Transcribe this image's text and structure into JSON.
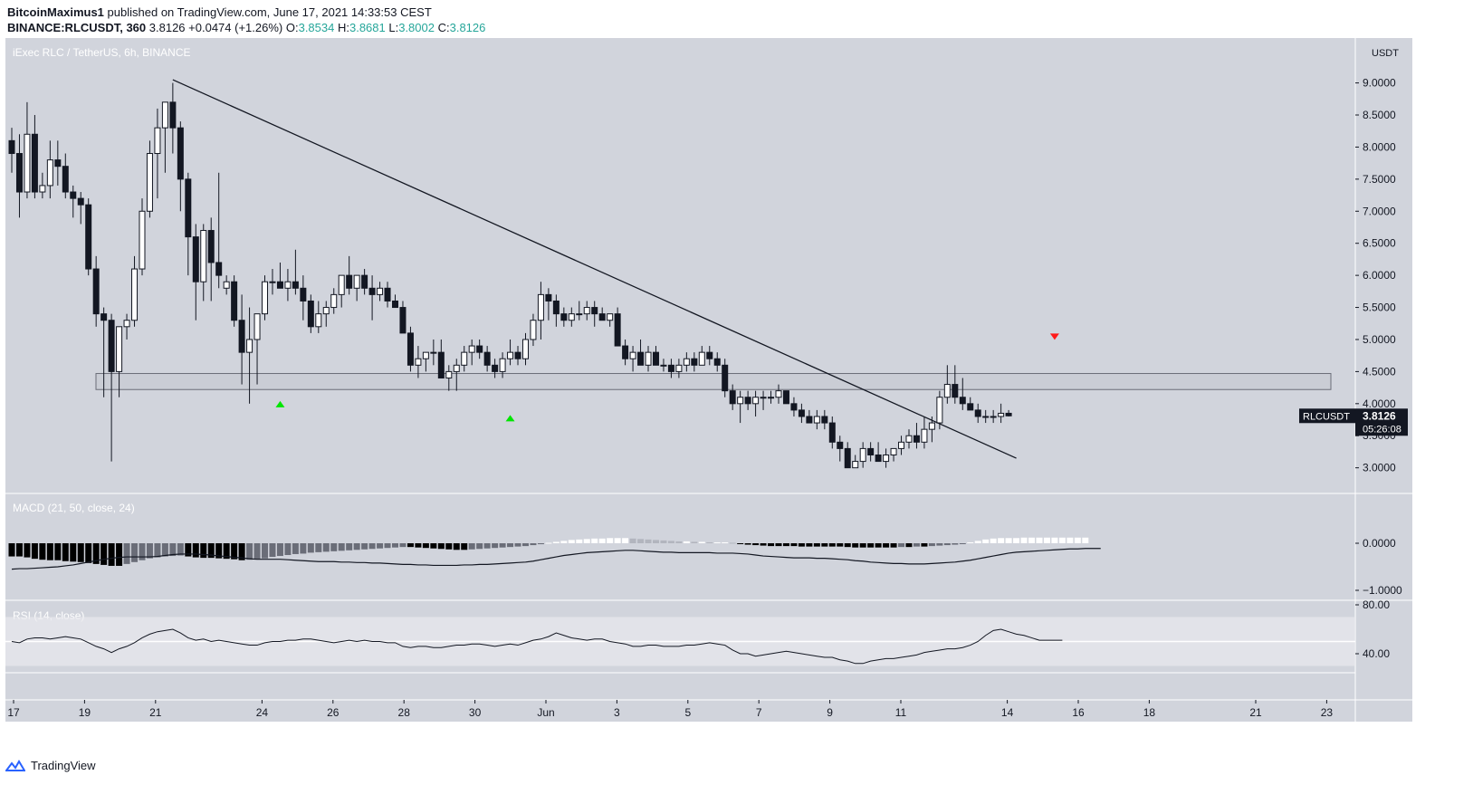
{
  "header": {
    "publisher": "BitcoinMaximus1",
    "published_text": "published on TradingView.com, June 17, 2021 14:33:53 CEST",
    "symbol": "BINANCE:RLCUSDT, 360",
    "last": "3.8126",
    "change": "+0.0474 (+1.26%)",
    "o_label": "O:",
    "o": "3.8534",
    "h_label": "H:",
    "h": "3.8681",
    "l_label": "L:",
    "l": "3.8002",
    "c_label": "C:",
    "c": "3.8126"
  },
  "footer": {
    "brand": "TradingView"
  },
  "chart_data": {
    "type": "candlestick",
    "title": "iExec RLC / TetherUS, 6h, BINANCE",
    "price_unit": "USDT",
    "price_ticks": [
      "9.0000",
      "8.5000",
      "8.0000",
      "7.5000",
      "7.0000",
      "6.5000",
      "6.0000",
      "5.5000",
      "5.0000",
      "4.5000",
      "4.0000",
      "3.5000",
      "3.0000"
    ],
    "y_range": [
      2.6,
      9.7
    ],
    "x_labels": [
      {
        "label": "17",
        "day": 0
      },
      {
        "label": "19",
        "day": 2
      },
      {
        "label": "21",
        "day": 4
      },
      {
        "label": "24",
        "day": 7
      },
      {
        "label": "26",
        "day": 9
      },
      {
        "label": "28",
        "day": 11
      },
      {
        "label": "30",
        "day": 13
      },
      {
        "label": "Jun",
        "day": 15
      },
      {
        "label": "3",
        "day": 17
      },
      {
        "label": "5",
        "day": 19
      },
      {
        "label": "7",
        "day": 21
      },
      {
        "label": "9",
        "day": 23
      },
      {
        "label": "11",
        "day": 25
      },
      {
        "label": "14",
        "day": 28
      },
      {
        "label": "16",
        "day": 30
      },
      {
        "label": "18",
        "day": 32
      },
      {
        "label": "21",
        "day": 35
      },
      {
        "label": "23",
        "day": 37
      }
    ],
    "last_price_label": {
      "symbol": "RLCUSDT",
      "price": "3.8126",
      "countdown": "05:26:08"
    },
    "candles": [
      [
        8.1,
        8.3,
        7.6,
        7.9
      ],
      [
        7.9,
        8.2,
        6.9,
        7.3
      ],
      [
        7.3,
        8.7,
        7.2,
        8.2
      ],
      [
        8.2,
        8.5,
        7.2,
        7.3
      ],
      [
        7.3,
        7.6,
        7.2,
        7.4
      ],
      [
        7.4,
        8.1,
        7.2,
        7.8
      ],
      [
        7.8,
        8.1,
        7.4,
        7.7
      ],
      [
        7.7,
        7.9,
        7.2,
        7.3
      ],
      [
        7.3,
        7.4,
        6.9,
        7.2
      ],
      [
        7.2,
        7.3,
        6.8,
        7.1
      ],
      [
        7.1,
        7.2,
        6.0,
        6.1
      ],
      [
        6.1,
        6.3,
        5.2,
        5.4
      ],
      [
        5.4,
        5.5,
        4.1,
        5.3
      ],
      [
        5.3,
        5.4,
        3.1,
        4.5
      ],
      [
        4.5,
        5.2,
        4.1,
        5.2
      ],
      [
        5.2,
        5.4,
        5.0,
        5.3
      ],
      [
        5.3,
        6.3,
        5.2,
        6.1
      ],
      [
        6.1,
        7.2,
        6.0,
        7.0
      ],
      [
        7.0,
        8.1,
        6.9,
        7.9
      ],
      [
        7.9,
        8.6,
        7.2,
        8.3
      ],
      [
        8.3,
        8.7,
        7.6,
        8.7
      ],
      [
        8.7,
        9.0,
        7.9,
        8.3
      ],
      [
        8.3,
        8.4,
        7.0,
        7.5
      ],
      [
        7.5,
        7.6,
        6.0,
        6.6
      ],
      [
        6.6,
        6.8,
        5.3,
        5.9
      ],
      [
        5.9,
        6.8,
        5.6,
        6.7
      ],
      [
        6.7,
        6.9,
        5.6,
        6.2
      ],
      [
        6.2,
        7.6,
        5.8,
        6.0
      ],
      [
        5.8,
        6.0,
        5.7,
        5.9
      ],
      [
        5.9,
        6.0,
        5.2,
        5.3
      ],
      [
        5.3,
        5.7,
        4.3,
        4.8
      ],
      [
        4.8,
        5.5,
        4.0,
        5.0
      ],
      [
        5.0,
        5.4,
        4.3,
        5.4
      ],
      [
        5.4,
        6.0,
        5.3,
        5.9
      ],
      [
        5.9,
        6.1,
        5.7,
        5.9
      ],
      [
        5.9,
        6.2,
        5.8,
        5.8
      ],
      [
        5.8,
        6.1,
        5.6,
        5.9
      ],
      [
        5.9,
        6.4,
        5.7,
        5.8
      ],
      [
        5.8,
        6.0,
        5.3,
        5.6
      ],
      [
        5.6,
        5.7,
        5.1,
        5.2
      ],
      [
        5.2,
        5.6,
        5.1,
        5.4
      ],
      [
        5.4,
        5.6,
        5.2,
        5.5
      ],
      [
        5.5,
        5.8,
        5.4,
        5.7
      ],
      [
        5.7,
        6.0,
        5.5,
        6.0
      ],
      [
        6.0,
        6.3,
        5.7,
        5.8
      ],
      [
        5.8,
        6.0,
        5.6,
        6.0
      ],
      [
        6.0,
        6.1,
        5.7,
        5.8
      ],
      [
        5.8,
        6.0,
        5.3,
        5.7
      ],
      [
        5.7,
        5.9,
        5.6,
        5.8
      ],
      [
        5.8,
        5.9,
        5.5,
        5.6
      ],
      [
        5.6,
        5.7,
        5.5,
        5.5
      ],
      [
        5.5,
        5.6,
        5.1,
        5.1
      ],
      [
        5.1,
        5.2,
        4.5,
        4.6
      ],
      [
        4.6,
        4.9,
        4.4,
        4.7
      ],
      [
        4.7,
        4.8,
        4.5,
        4.8
      ],
      [
        4.8,
        5.0,
        4.6,
        4.8
      ],
      [
        4.8,
        5.0,
        4.4,
        4.4
      ],
      [
        4.4,
        4.6,
        4.2,
        4.5
      ],
      [
        4.5,
        4.7,
        4.2,
        4.6
      ],
      [
        4.6,
        4.9,
        4.5,
        4.8
      ],
      [
        4.8,
        5.0,
        4.6,
        4.9
      ],
      [
        4.9,
        5.0,
        4.7,
        4.8
      ],
      [
        4.8,
        4.9,
        4.5,
        4.6
      ],
      [
        4.6,
        4.7,
        4.4,
        4.5
      ],
      [
        4.5,
        4.8,
        4.4,
        4.7
      ],
      [
        4.7,
        5.0,
        4.6,
        4.8
      ],
      [
        4.8,
        4.9,
        4.6,
        4.7
      ],
      [
        4.7,
        5.1,
        4.6,
        5.0
      ],
      [
        5.0,
        5.4,
        4.9,
        5.3
      ],
      [
        5.3,
        5.9,
        5.0,
        5.7
      ],
      [
        5.7,
        5.8,
        5.3,
        5.6
      ],
      [
        5.6,
        5.7,
        5.2,
        5.4
      ],
      [
        5.4,
        5.5,
        5.2,
        5.3
      ],
      [
        5.3,
        5.5,
        5.2,
        5.4
      ],
      [
        5.4,
        5.6,
        5.3,
        5.4
      ],
      [
        5.4,
        5.6,
        5.3,
        5.5
      ],
      [
        5.5,
        5.6,
        5.2,
        5.4
      ],
      [
        5.4,
        5.5,
        5.3,
        5.3
      ],
      [
        5.3,
        5.4,
        5.2,
        5.4
      ],
      [
        5.4,
        5.5,
        4.9,
        4.9
      ],
      [
        4.9,
        5.0,
        4.6,
        4.7
      ],
      [
        4.7,
        4.9,
        4.5,
        4.8
      ],
      [
        4.8,
        5.0,
        4.6,
        4.6
      ],
      [
        4.6,
        4.9,
        4.5,
        4.8
      ],
      [
        4.8,
        4.9,
        4.6,
        4.6
      ],
      [
        4.6,
        4.7,
        4.5,
        4.6
      ],
      [
        4.6,
        4.7,
        4.4,
        4.5
      ],
      [
        4.5,
        4.7,
        4.4,
        4.6
      ],
      [
        4.6,
        4.8,
        4.5,
        4.7
      ],
      [
        4.7,
        4.8,
        4.5,
        4.6
      ],
      [
        4.6,
        4.9,
        4.6,
        4.8
      ],
      [
        4.8,
        4.9,
        4.6,
        4.7
      ],
      [
        4.7,
        4.8,
        4.5,
        4.6
      ],
      [
        4.6,
        4.7,
        4.1,
        4.2
      ],
      [
        4.2,
        4.3,
        3.9,
        4.0
      ],
      [
        4.0,
        4.2,
        3.7,
        4.1
      ],
      [
        4.1,
        4.2,
        3.9,
        4.0
      ],
      [
        4.0,
        4.2,
        3.8,
        4.1
      ],
      [
        4.1,
        4.2,
        3.9,
        4.1
      ],
      [
        4.1,
        4.2,
        4.0,
        4.1
      ],
      [
        4.1,
        4.3,
        4.0,
        4.2
      ],
      [
        4.2,
        4.2,
        4.0,
        4.0
      ],
      [
        4.0,
        4.1,
        3.8,
        3.9
      ],
      [
        3.9,
        4.0,
        3.7,
        3.8
      ],
      [
        3.8,
        3.9,
        3.7,
        3.7
      ],
      [
        3.7,
        3.9,
        3.6,
        3.8
      ],
      [
        3.8,
        3.9,
        3.6,
        3.7
      ],
      [
        3.7,
        3.8,
        3.3,
        3.4
      ],
      [
        3.4,
        3.5,
        3.1,
        3.3
      ],
      [
        3.3,
        3.4,
        3.0,
        3.0
      ],
      [
        3.0,
        3.2,
        3.0,
        3.1
      ],
      [
        3.1,
        3.4,
        3.0,
        3.3
      ],
      [
        3.3,
        3.4,
        3.1,
        3.2
      ],
      [
        3.2,
        3.4,
        3.1,
        3.1
      ],
      [
        3.1,
        3.3,
        3.0,
        3.2
      ],
      [
        3.2,
        3.3,
        3.1,
        3.3
      ],
      [
        3.3,
        3.5,
        3.2,
        3.4
      ],
      [
        3.4,
        3.6,
        3.3,
        3.5
      ],
      [
        3.5,
        3.7,
        3.3,
        3.4
      ],
      [
        3.4,
        3.8,
        3.3,
        3.6
      ],
      [
        3.6,
        3.8,
        3.4,
        3.7
      ],
      [
        3.7,
        4.2,
        3.6,
        4.1
      ],
      [
        4.1,
        4.6,
        4.0,
        4.3
      ],
      [
        4.3,
        4.6,
        4.0,
        4.1
      ],
      [
        4.1,
        4.4,
        3.9,
        4.0
      ],
      [
        4.0,
        4.1,
        3.9,
        3.9
      ],
      [
        3.9,
        4.0,
        3.7,
        3.8
      ],
      [
        3.8,
        3.9,
        3.7,
        3.8
      ],
      [
        3.8,
        3.9,
        3.7,
        3.8
      ],
      [
        3.8,
        4.0,
        3.7,
        3.85
      ],
      [
        3.85,
        3.9,
        3.8,
        3.81
      ]
    ],
    "trendline": {
      "from": {
        "i": 21,
        "price": 9.05
      },
      "to": {
        "i": 131,
        "price": 3.15
      }
    },
    "support_zone": {
      "low": 4.22,
      "high": 4.47
    },
    "markers": [
      {
        "type": "arrow-up",
        "i": 35,
        "price": 4.0,
        "color": "#00e600"
      },
      {
        "type": "arrow-up",
        "i": 65,
        "price": 3.78,
        "color": "#00e600"
      },
      {
        "type": "arrow-down",
        "i": 136,
        "price": 5.05,
        "color": "#ff1a1a"
      }
    ],
    "macd": {
      "label": "MACD (21, 50, close, 24)",
      "ticks": [
        "0.0000",
        "−1.0000"
      ],
      "hist": [
        -0.28,
        -0.28,
        -0.3,
        -0.33,
        -0.35,
        -0.36,
        -0.36,
        -0.38,
        -0.39,
        -0.4,
        -0.42,
        -0.44,
        -0.46,
        -0.48,
        -0.48,
        -0.44,
        -0.4,
        -0.36,
        -0.32,
        -0.3,
        -0.28,
        -0.27,
        -0.26,
        -0.28,
        -0.3,
        -0.31,
        -0.31,
        -0.32,
        -0.33,
        -0.34,
        -0.36,
        -0.35,
        -0.34,
        -0.32,
        -0.29,
        -0.27,
        -0.25,
        -0.23,
        -0.22,
        -0.2,
        -0.19,
        -0.18,
        -0.17,
        -0.16,
        -0.15,
        -0.14,
        -0.13,
        -0.12,
        -0.11,
        -0.1,
        -0.09,
        -0.08,
        -0.08,
        -0.09,
        -0.1,
        -0.11,
        -0.12,
        -0.13,
        -0.14,
        -0.14,
        -0.13,
        -0.12,
        -0.11,
        -0.1,
        -0.09,
        -0.08,
        -0.07,
        -0.06,
        -0.04,
        -0.02,
        0.01,
        0.03,
        0.05,
        0.07,
        0.08,
        0.09,
        0.1,
        0.1,
        0.11,
        0.11,
        0.11,
        0.1,
        0.09,
        0.08,
        0.07,
        0.06,
        0.05,
        0.04,
        0.04,
        0.03,
        0.03,
        0.02,
        0.02,
        0.02,
        0.01,
        -0.01,
        -0.03,
        -0.04,
        -0.05,
        -0.06,
        -0.06,
        -0.06,
        -0.06,
        -0.07,
        -0.07,
        -0.07,
        -0.07,
        -0.07,
        -0.07,
        -0.08,
        -0.09,
        -0.09,
        -0.09,
        -0.09,
        -0.09,
        -0.09,
        -0.08,
        -0.08,
        -0.07,
        -0.07,
        -0.06,
        -0.05,
        -0.04,
        -0.03,
        -0.01,
        0.02,
        0.05,
        0.08,
        0.1,
        0.11,
        0.11,
        0.11,
        0.12,
        0.12,
        0.12,
        0.12,
        0.12,
        0.12,
        0.12,
        0.12,
        0.12
      ],
      "line": [
        -0.55,
        -0.54,
        -0.54,
        -0.53,
        -0.52,
        -0.51,
        -0.5,
        -0.48,
        -0.46,
        -0.43,
        -0.4,
        -0.37,
        -0.34,
        -0.32,
        -0.3,
        -0.29,
        -0.29,
        -0.29,
        -0.29,
        -0.28,
        -0.26,
        -0.24,
        -0.23,
        -0.23,
        -0.23,
        -0.24,
        -0.25,
        -0.27,
        -0.28,
        -0.3,
        -0.31,
        -0.33,
        -0.34,
        -0.34,
        -0.34,
        -0.34,
        -0.35,
        -0.36,
        -0.37,
        -0.38,
        -0.39,
        -0.39,
        -0.39,
        -0.4,
        -0.4,
        -0.41,
        -0.41,
        -0.42,
        -0.42,
        -0.43,
        -0.44,
        -0.45,
        -0.45,
        -0.46,
        -0.46,
        -0.47,
        -0.47,
        -0.47,
        -0.47,
        -0.46,
        -0.46,
        -0.45,
        -0.45,
        -0.44,
        -0.43,
        -0.42,
        -0.41,
        -0.4,
        -0.38,
        -0.35,
        -0.32,
        -0.29,
        -0.26,
        -0.24,
        -0.22,
        -0.2,
        -0.19,
        -0.18,
        -0.17,
        -0.16,
        -0.15,
        -0.15,
        -0.16,
        -0.17,
        -0.18,
        -0.19,
        -0.19,
        -0.2,
        -0.2,
        -0.2,
        -0.2,
        -0.2,
        -0.21,
        -0.21,
        -0.21,
        -0.22,
        -0.23,
        -0.25,
        -0.27,
        -0.28,
        -0.29,
        -0.3,
        -0.31,
        -0.31,
        -0.31,
        -0.32,
        -0.32,
        -0.33,
        -0.34,
        -0.35,
        -0.37,
        -0.38,
        -0.4,
        -0.41,
        -0.42,
        -0.43,
        -0.43,
        -0.44,
        -0.44,
        -0.44,
        -0.43,
        -0.42,
        -0.41,
        -0.4,
        -0.38,
        -0.36,
        -0.33,
        -0.3,
        -0.27,
        -0.24,
        -0.21,
        -0.19,
        -0.18,
        -0.17,
        -0.16,
        -0.15,
        -0.14,
        -0.13,
        -0.12,
        -0.12,
        -0.11,
        -0.11,
        -0.11
      ]
    },
    "rsi": {
      "label": "RSI (14, close)",
      "ticks": [
        "80.00",
        "40.00"
      ],
      "band": [
        30,
        70
      ],
      "values": [
        50,
        49,
        52,
        53,
        53,
        52,
        53,
        54,
        53,
        52,
        49,
        46,
        44,
        41,
        44,
        46,
        49,
        53,
        56,
        58,
        59,
        60,
        57,
        53,
        51,
        52,
        50,
        51,
        50,
        49,
        48,
        47,
        47,
        49,
        50,
        50,
        51,
        51,
        52,
        52,
        51,
        50,
        49,
        50,
        51,
        50,
        51,
        50,
        50,
        49,
        49,
        46,
        45,
        46,
        46,
        45,
        45,
        46,
        47,
        47,
        48,
        48,
        47,
        46,
        47,
        48,
        47,
        49,
        51,
        52,
        54,
        57,
        55,
        53,
        52,
        51,
        52,
        52,
        50,
        49,
        48,
        46,
        46,
        47,
        47,
        46,
        46,
        46,
        47,
        47,
        48,
        49,
        48,
        47,
        43,
        40,
        40,
        38,
        39,
        40,
        41,
        42,
        41,
        40,
        39,
        38,
        37,
        37,
        35,
        34,
        32,
        32,
        34,
        35,
        36,
        36,
        37,
        38,
        39,
        41,
        42,
        43,
        44,
        44,
        45,
        47,
        50,
        55,
        59,
        60,
        58,
        56,
        55,
        53,
        51,
        51,
        51,
        51
      ]
    }
  }
}
